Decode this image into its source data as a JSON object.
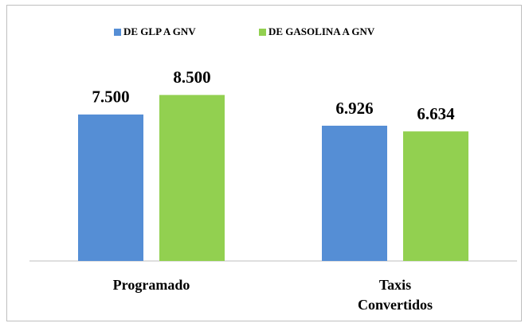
{
  "chart_data": {
    "type": "bar",
    "categories": [
      "Programado",
      "Taxis Convertidos"
    ],
    "series": [
      {
        "name": "DE GLP A GNV",
        "color": "#558ed5",
        "values": [
          7500,
          6926
        ],
        "value_labels": [
          "7.500",
          "6.926"
        ]
      },
      {
        "name": "DE GASOLINA A GNV",
        "color": "#92d050",
        "values": [
          8500,
          6634
        ],
        "value_labels": [
          "8.500",
          "6.634"
        ]
      }
    ],
    "ylim": [
      0,
      11000
    ],
    "legend": "top"
  }
}
